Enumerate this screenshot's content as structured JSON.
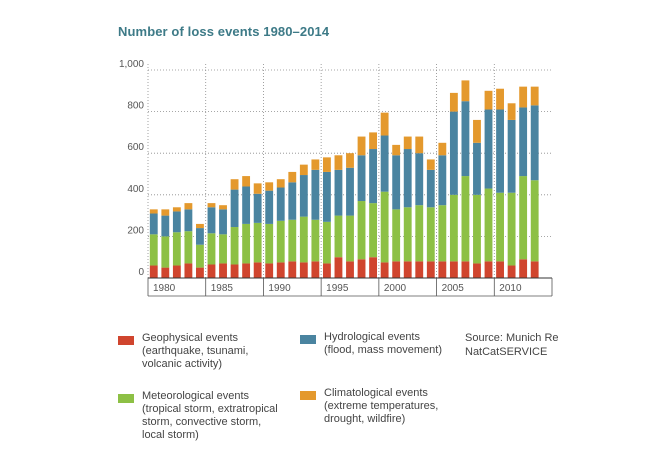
{
  "chart_data": {
    "type": "bar",
    "stacked": true,
    "title": "Number of loss events 1980–2014",
    "xlabel": "",
    "ylabel": "",
    "ylim": [
      0,
      1000
    ],
    "yticks": [
      0,
      200,
      400,
      600,
      800,
      1000
    ],
    "ytick_labels": [
      "0",
      "200",
      "400",
      "600",
      "800",
      "1,000"
    ],
    "xtick_labels": [
      "1980",
      "1985",
      "1990",
      "1995",
      "2000",
      "2005",
      "2010"
    ],
    "categories": [
      "1980",
      "1981",
      "1982",
      "1983",
      "1984",
      "1985",
      "1986",
      "1987",
      "1988",
      "1989",
      "1990",
      "1991",
      "1992",
      "1993",
      "1994",
      "1995",
      "1996",
      "1997",
      "1998",
      "1999",
      "2000",
      "2001",
      "2002",
      "2003",
      "2004",
      "2005",
      "2006",
      "2007",
      "2008",
      "2009",
      "2010",
      "2011",
      "2012",
      "2013",
      "2014"
    ],
    "series": [
      {
        "name": "Geophysical events",
        "color": "#d0452e",
        "values": [
          60,
          50,
          60,
          70,
          50,
          65,
          70,
          65,
          70,
          75,
          70,
          75,
          80,
          75,
          80,
          70,
          100,
          80,
          90,
          100,
          75,
          80,
          80,
          80,
          80,
          80,
          80,
          80,
          70,
          80,
          80,
          60,
          90,
          80,
          0
        ]
      },
      {
        "name": "Meteorological events",
        "color": "#8dc045",
        "values": [
          150,
          150,
          160,
          155,
          110,
          150,
          140,
          180,
          190,
          190,
          190,
          200,
          200,
          220,
          200,
          200,
          200,
          220,
          280,
          260,
          340,
          250,
          260,
          270,
          260,
          270,
          320,
          410,
          330,
          350,
          330,
          350,
          400,
          390,
          0
        ]
      },
      {
        "name": "Hydrological events",
        "color": "#4a84a0",
        "values": [
          100,
          100,
          100,
          105,
          80,
          125,
          120,
          180,
          180,
          140,
          160,
          160,
          180,
          200,
          240,
          240,
          220,
          230,
          220,
          260,
          270,
          260,
          280,
          250,
          180,
          240,
          400,
          360,
          250,
          380,
          400,
          350,
          330,
          360,
          0
        ]
      },
      {
        "name": "Climatological events",
        "color": "#e4992d",
        "values": [
          20,
          30,
          20,
          30,
          20,
          20,
          20,
          50,
          50,
          50,
          40,
          40,
          50,
          50,
          50,
          70,
          70,
          70,
          90,
          80,
          110,
          50,
          60,
          80,
          50,
          60,
          90,
          100,
          110,
          90,
          100,
          80,
          100,
          90,
          0
        ]
      }
    ]
  },
  "legend": [
    {
      "label": "Geophysical events",
      "desc": [
        "(earthquake, tsunami,",
        "volcanic activity)"
      ],
      "color": "#d0452e"
    },
    {
      "label": "Meteorological events",
      "desc": [
        "(tropical storm, extratropical",
        "storm, convective storm,",
        "local storm)"
      ],
      "color": "#8dc045"
    },
    {
      "label": "Hydrological events",
      "desc": [
        "(flood, mass movement)"
      ],
      "color": "#4a84a0"
    },
    {
      "label": "Climatological events",
      "desc": [
        "(extreme temperatures,",
        "drought, wildfire)"
      ],
      "color": "#e4992d"
    }
  ],
  "source": [
    "Source: Munich Re",
    "NatCatSERVICE"
  ],
  "colors": {
    "title": "#3d7a87",
    "grid": "#8a8a8a"
  }
}
